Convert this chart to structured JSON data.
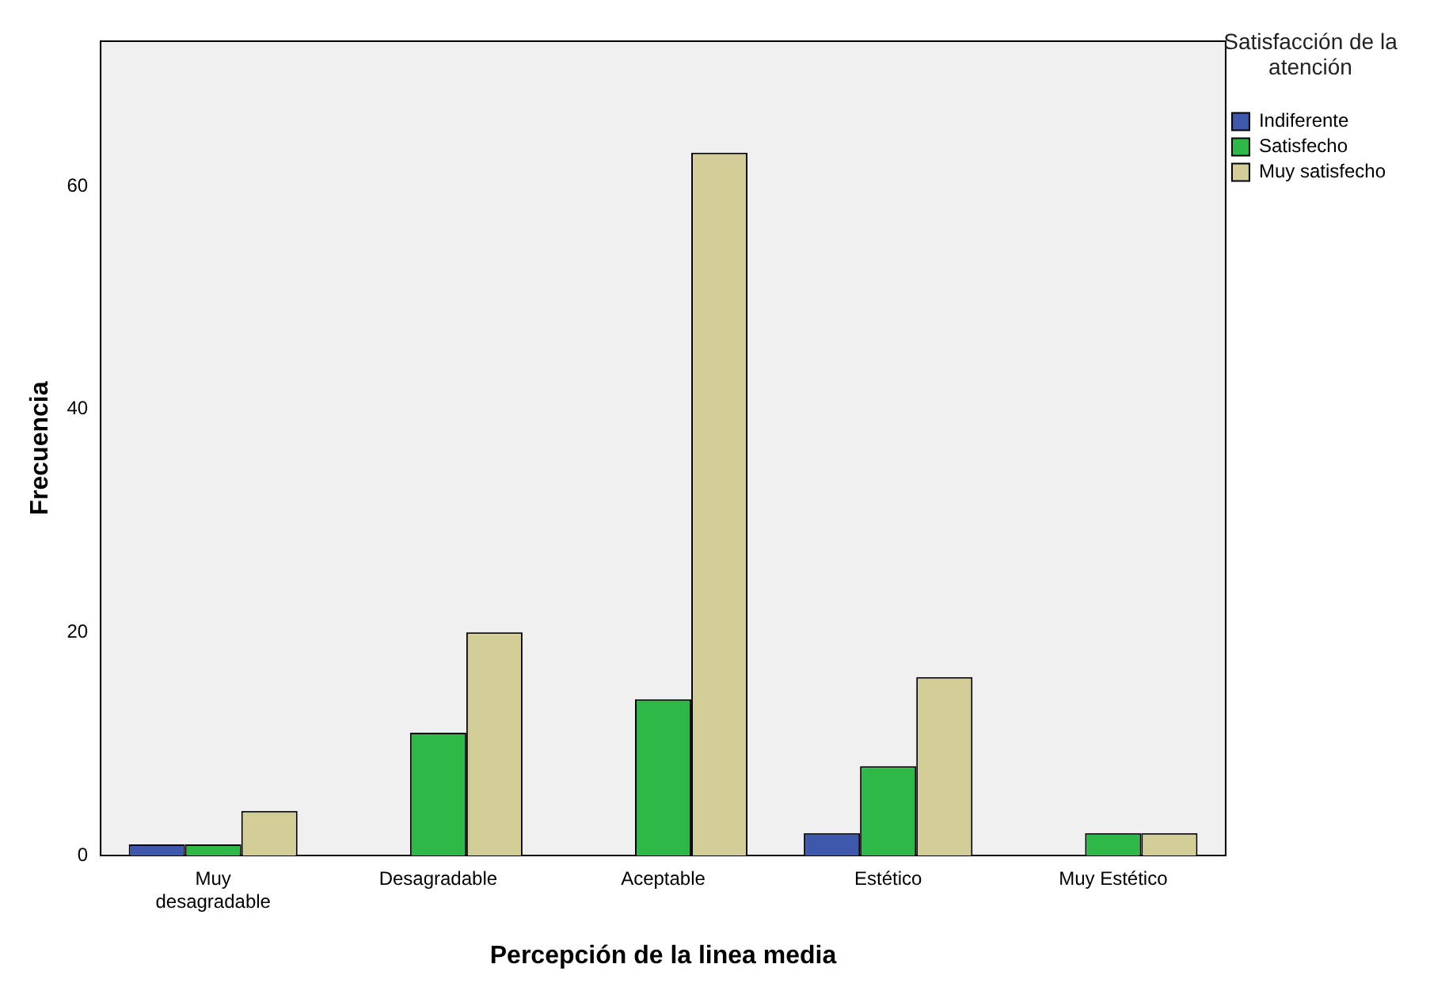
{
  "chart_data": {
    "type": "bar",
    "xlabel": "Percepción de la linea media",
    "ylabel": "Frecuencia",
    "legend_title": "Satisfacción de la atención",
    "legend": "top right",
    "grid": false,
    "categories": [
      "Muy desagradable",
      "Desagradable",
      "Aceptable",
      "Estético",
      "Muy Estético"
    ],
    "ylim": [
      0,
      73
    ],
    "yticks": [
      0,
      20,
      40,
      60
    ],
    "series": [
      {
        "name": "Indiferente",
        "color": "#3e58ac",
        "values": [
          1,
          null,
          null,
          2,
          null
        ]
      },
      {
        "name": "Satisfecho",
        "color": "#2eb848",
        "values": [
          1,
          11,
          14,
          8,
          2
        ]
      },
      {
        "name": "Muy satisfecho",
        "color": "#d3ce97",
        "values": [
          4,
          20,
          63,
          16,
          2
        ]
      }
    ]
  }
}
